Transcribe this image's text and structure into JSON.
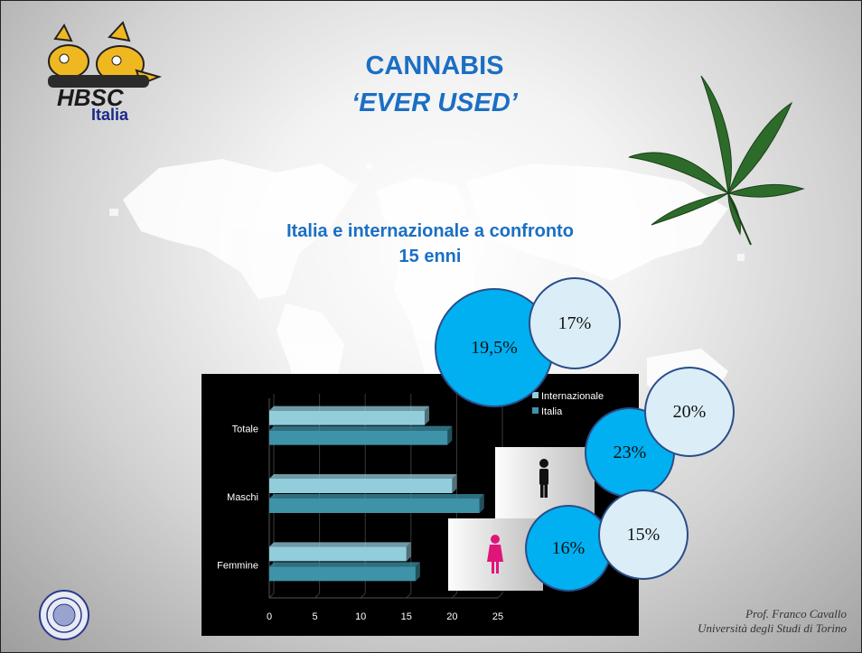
{
  "title": {
    "line1": "CANNABIS",
    "line2": "‘EVER USED’"
  },
  "logo": {
    "text": "HBSC",
    "subtext": "Italia"
  },
  "subtitle": {
    "line1": "Italia e internazionale a confronto",
    "line2": "15 enni"
  },
  "bubbles": {
    "totale": {
      "italia": "19,5%",
      "internazionale": "17%"
    },
    "maschi": {
      "italia": "23%",
      "internazionale": "20%"
    },
    "femmine": {
      "italia": "16%",
      "internazionale": "15%"
    }
  },
  "credit": {
    "line1": "Prof. Franco Cavallo",
    "line2": "Università degli Studi di Torino"
  },
  "colors": {
    "italia": "#3e93a8",
    "internazionale": "#92cddc",
    "title": "#1a6fc4",
    "bubble_italia": "#00b0f0",
    "bubble_internazionale": "#dbeef7"
  },
  "chart_data": {
    "type": "bar",
    "orientation": "horizontal",
    "categories": [
      "Totale",
      "Maschi",
      "Femmine"
    ],
    "series": [
      {
        "name": "Internazionale",
        "values": [
          17,
          20,
          15
        ]
      },
      {
        "name": "Italia",
        "values": [
          19.5,
          23,
          16
        ]
      }
    ],
    "xticks": [
      "0",
      "5",
      "10",
      "15",
      "20",
      "25"
    ],
    "xlim": [
      0,
      25
    ],
    "grid": true,
    "legend": "top-right"
  }
}
